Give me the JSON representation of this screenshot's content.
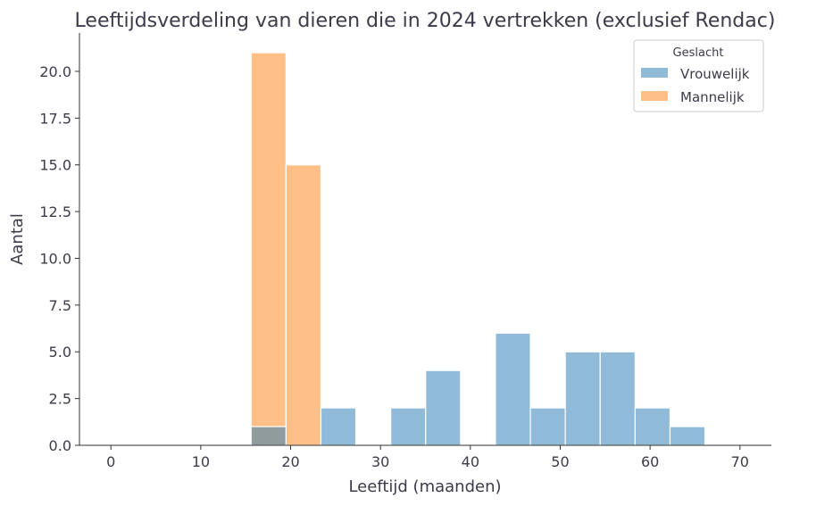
{
  "chart_data": {
    "type": "bar",
    "title": "Leeftijdsverdeling van dieren die in 2024 vertrekken (exclusief Rendac)",
    "xlabel": "Leeftijd (maanden)",
    "ylabel": "Aantal",
    "xlim": [
      -3.5,
      73.5
    ],
    "ylim": [
      0,
      22.05
    ],
    "xticks": [
      0,
      10,
      20,
      30,
      40,
      50,
      60,
      70
    ],
    "yticks": [
      "0.0",
      "2.5",
      "5.0",
      "7.5",
      "10.0",
      "12.5",
      "15.0",
      "17.5",
      "20.0"
    ],
    "bin_start": 15.6,
    "bin_width": 3.885,
    "legend": {
      "title": "Geslacht",
      "position": "top-right"
    },
    "series": [
      {
        "name": "Mannelijk",
        "color": "#ff7f0e",
        "values": [
          21,
          15,
          0,
          0,
          0,
          0,
          0,
          0,
          0,
          0,
          0,
          0,
          0
        ]
      },
      {
        "name": "Vrouwelijk",
        "color": "#1f77b4",
        "values": [
          1,
          0,
          2,
          0,
          2,
          4,
          0,
          6,
          2,
          5,
          5,
          2,
          1
        ]
      }
    ]
  }
}
